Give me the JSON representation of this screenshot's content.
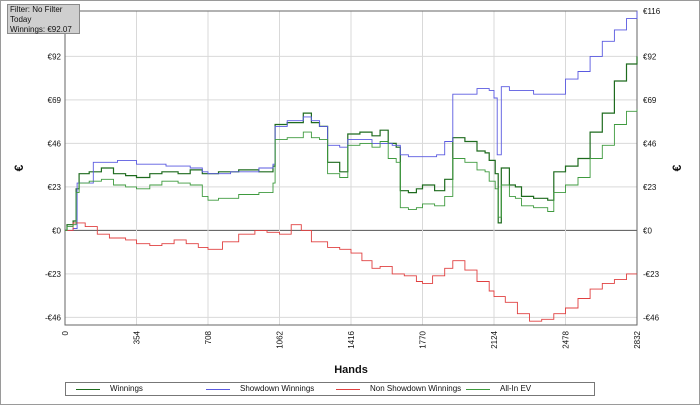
{
  "filter_box": {
    "line1": "Filter: No Filter",
    "line2": "Today",
    "line3": "Winnings: €92.07"
  },
  "chart_data": {
    "type": "line",
    "xlabel": "Hands",
    "ylabel": "€",
    "x_ticks": [
      0,
      354,
      708,
      1062,
      1416,
      1770,
      2124,
      2478,
      2832
    ],
    "xlim": [
      0,
      2832
    ],
    "y_ticks": [
      -46,
      -23,
      0,
      23,
      46,
      69,
      92,
      116
    ],
    "y_tick_labels": [
      "-€46",
      "-€23",
      "€0",
      "€23",
      "€46",
      "€69",
      "€92",
      "€116"
    ],
    "ylim": [
      -50,
      116
    ],
    "grid": true,
    "legend_position": "bottom",
    "series": [
      {
        "name": "Winnings",
        "color": "#1e6b1e",
        "points": [
          [
            0,
            0
          ],
          [
            10,
            3
          ],
          [
            40,
            5
          ],
          [
            55,
            22
          ],
          [
            70,
            30
          ],
          [
            120,
            31
          ],
          [
            180,
            33
          ],
          [
            240,
            30
          ],
          [
            300,
            29
          ],
          [
            354,
            28
          ],
          [
            420,
            30
          ],
          [
            480,
            31
          ],
          [
            560,
            30
          ],
          [
            620,
            32
          ],
          [
            680,
            30
          ],
          [
            708,
            30
          ],
          [
            760,
            31
          ],
          [
            860,
            32
          ],
          [
            960,
            31
          ],
          [
            1030,
            34
          ],
          [
            1040,
            56
          ],
          [
            1100,
            57
          ],
          [
            1180,
            62
          ],
          [
            1220,
            57
          ],
          [
            1260,
            55
          ],
          [
            1300,
            36
          ],
          [
            1360,
            31
          ],
          [
            1400,
            51
          ],
          [
            1460,
            52
          ],
          [
            1520,
            50
          ],
          [
            1560,
            53
          ],
          [
            1600,
            46
          ],
          [
            1640,
            44
          ],
          [
            1660,
            21
          ],
          [
            1700,
            20
          ],
          [
            1740,
            22
          ],
          [
            1770,
            24
          ],
          [
            1830,
            21
          ],
          [
            1880,
            27
          ],
          [
            1920,
            49
          ],
          [
            1980,
            47
          ],
          [
            2040,
            42
          ],
          [
            2080,
            41
          ],
          [
            2100,
            37
          ],
          [
            2130,
            30
          ],
          [
            2145,
            4
          ],
          [
            2160,
            33
          ],
          [
            2200,
            24
          ],
          [
            2230,
            23
          ],
          [
            2260,
            18
          ],
          [
            2320,
            17
          ],
          [
            2390,
            16
          ],
          [
            2420,
            31
          ],
          [
            2478,
            34
          ],
          [
            2540,
            38
          ],
          [
            2600,
            52
          ],
          [
            2660,
            62
          ],
          [
            2720,
            79
          ],
          [
            2780,
            88
          ],
          [
            2832,
            92
          ]
        ]
      },
      {
        "name": "Showdown Winnings",
        "color": "#5a5ae0",
        "points": [
          [
            0,
            0
          ],
          [
            40,
            1
          ],
          [
            60,
            25
          ],
          [
            140,
            36
          ],
          [
            260,
            37
          ],
          [
            354,
            35
          ],
          [
            500,
            34
          ],
          [
            620,
            33
          ],
          [
            680,
            31
          ],
          [
            708,
            30
          ],
          [
            820,
            31
          ],
          [
            960,
            33
          ],
          [
            1030,
            35
          ],
          [
            1040,
            55
          ],
          [
            1100,
            58
          ],
          [
            1180,
            60
          ],
          [
            1220,
            58
          ],
          [
            1260,
            55
          ],
          [
            1300,
            45
          ],
          [
            1360,
            44
          ],
          [
            1400,
            48
          ],
          [
            1460,
            48
          ],
          [
            1520,
            46
          ],
          [
            1560,
            46
          ],
          [
            1620,
            45
          ],
          [
            1660,
            40
          ],
          [
            1700,
            39
          ],
          [
            1770,
            39
          ],
          [
            1840,
            40
          ],
          [
            1880,
            47
          ],
          [
            1920,
            72
          ],
          [
            1980,
            72
          ],
          [
            2040,
            75
          ],
          [
            2100,
            74
          ],
          [
            2124,
            70
          ],
          [
            2140,
            40
          ],
          [
            2160,
            76
          ],
          [
            2200,
            74
          ],
          [
            2260,
            74
          ],
          [
            2320,
            72
          ],
          [
            2400,
            72
          ],
          [
            2478,
            80
          ],
          [
            2540,
            84
          ],
          [
            2600,
            92
          ],
          [
            2660,
            100
          ],
          [
            2720,
            106
          ],
          [
            2780,
            112
          ],
          [
            2832,
            116
          ]
        ]
      },
      {
        "name": "Non Showdown Winnings",
        "color": "#e04040",
        "points": [
          [
            0,
            0
          ],
          [
            40,
            4
          ],
          [
            100,
            2
          ],
          [
            160,
            -2
          ],
          [
            220,
            -4
          ],
          [
            300,
            -5
          ],
          [
            354,
            -7
          ],
          [
            420,
            -8
          ],
          [
            480,
            -7
          ],
          [
            540,
            -5
          ],
          [
            600,
            -7
          ],
          [
            660,
            -9
          ],
          [
            708,
            -10
          ],
          [
            780,
            -6
          ],
          [
            860,
            -2
          ],
          [
            940,
            0
          ],
          [
            1000,
            -1
          ],
          [
            1062,
            -2
          ],
          [
            1120,
            3
          ],
          [
            1170,
            0
          ],
          [
            1220,
            -6
          ],
          [
            1300,
            -9
          ],
          [
            1360,
            -10
          ],
          [
            1416,
            -12
          ],
          [
            1470,
            -16
          ],
          [
            1520,
            -20
          ],
          [
            1560,
            -19
          ],
          [
            1620,
            -23
          ],
          [
            1680,
            -24
          ],
          [
            1740,
            -27
          ],
          [
            1770,
            -28
          ],
          [
            1820,
            -24
          ],
          [
            1880,
            -20
          ],
          [
            1920,
            -16
          ],
          [
            1980,
            -21
          ],
          [
            2040,
            -27
          ],
          [
            2100,
            -32
          ],
          [
            2124,
            -35
          ],
          [
            2180,
            -38
          ],
          [
            2240,
            -44
          ],
          [
            2300,
            -48
          ],
          [
            2360,
            -47
          ],
          [
            2420,
            -44
          ],
          [
            2478,
            -41
          ],
          [
            2540,
            -36
          ],
          [
            2600,
            -31
          ],
          [
            2660,
            -28
          ],
          [
            2720,
            -26
          ],
          [
            2780,
            -23
          ],
          [
            2832,
            -23
          ]
        ]
      },
      {
        "name": "All-In EV",
        "color": "#3e9a3e",
        "points": [
          [
            0,
            0
          ],
          [
            10,
            2
          ],
          [
            40,
            3
          ],
          [
            55,
            20
          ],
          [
            70,
            25
          ],
          [
            120,
            26
          ],
          [
            180,
            27
          ],
          [
            240,
            24
          ],
          [
            300,
            23
          ],
          [
            354,
            22
          ],
          [
            420,
            24
          ],
          [
            480,
            26
          ],
          [
            560,
            25
          ],
          [
            620,
            24
          ],
          [
            680,
            18
          ],
          [
            708,
            16
          ],
          [
            760,
            17
          ],
          [
            860,
            19
          ],
          [
            960,
            20
          ],
          [
            1030,
            25
          ],
          [
            1040,
            48
          ],
          [
            1100,
            49
          ],
          [
            1180,
            52
          ],
          [
            1220,
            49
          ],
          [
            1260,
            48
          ],
          [
            1300,
            30
          ],
          [
            1360,
            28
          ],
          [
            1400,
            45
          ],
          [
            1460,
            46
          ],
          [
            1520,
            44
          ],
          [
            1560,
            47
          ],
          [
            1600,
            38
          ],
          [
            1640,
            36
          ],
          [
            1660,
            12
          ],
          [
            1700,
            11
          ],
          [
            1740,
            12
          ],
          [
            1770,
            14
          ],
          [
            1830,
            13
          ],
          [
            1880,
            18
          ],
          [
            1920,
            38
          ],
          [
            1980,
            36
          ],
          [
            2040,
            32
          ],
          [
            2080,
            31
          ],
          [
            2100,
            26
          ],
          [
            2130,
            22
          ],
          [
            2145,
            7
          ],
          [
            2160,
            24
          ],
          [
            2200,
            18
          ],
          [
            2230,
            17
          ],
          [
            2260,
            13
          ],
          [
            2320,
            12
          ],
          [
            2390,
            10
          ],
          [
            2420,
            20
          ],
          [
            2478,
            24
          ],
          [
            2540,
            28
          ],
          [
            2600,
            38
          ],
          [
            2660,
            45
          ],
          [
            2720,
            56
          ],
          [
            2780,
            63
          ],
          [
            2832,
            64
          ]
        ]
      }
    ]
  }
}
